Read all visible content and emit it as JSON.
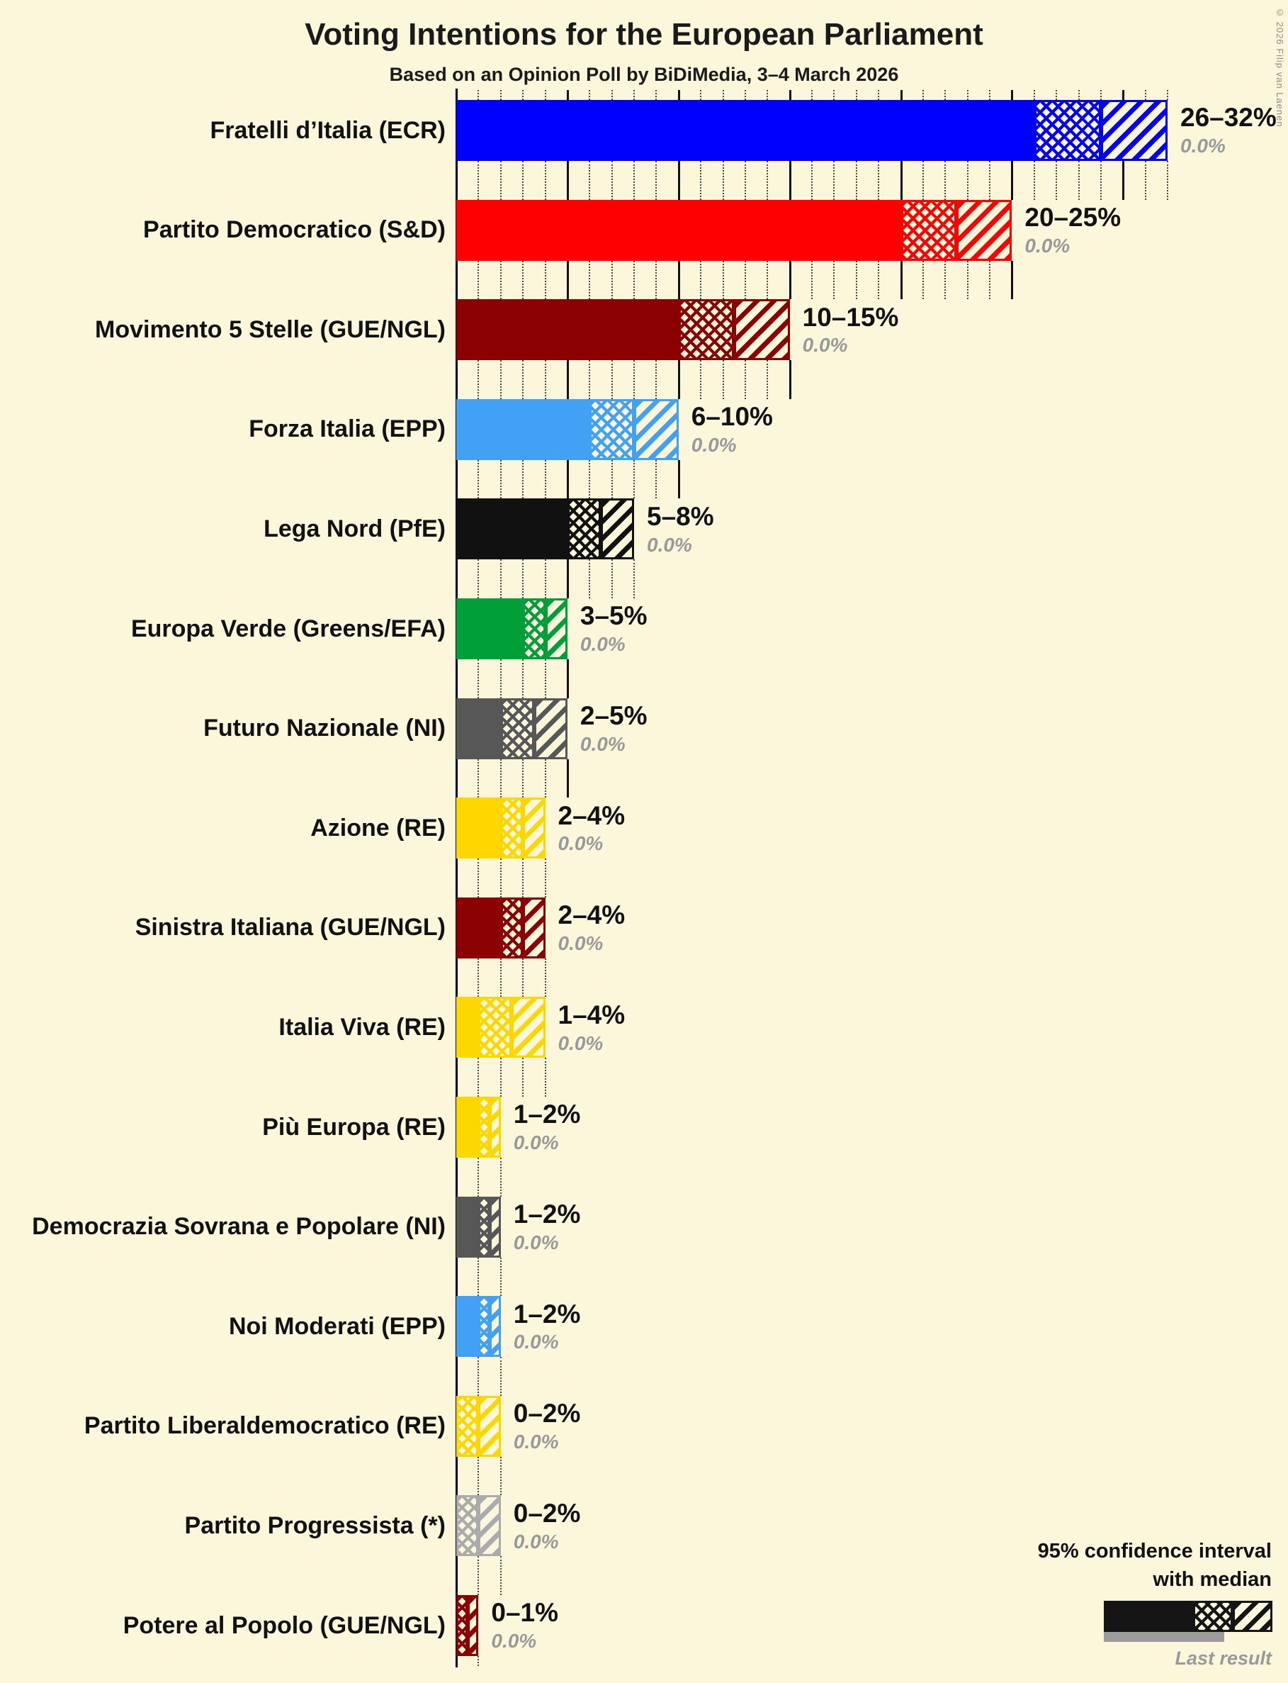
{
  "copyright": "© 2026 Filip van Laenen",
  "legend": {
    "line1": "95% confidence interval",
    "line2": "with median",
    "last_result_label": "Last result"
  },
  "colors": {
    "background": "#FCF7DB",
    "grid_minor": "#444444",
    "grid_major": "#111111",
    "text": "#111111",
    "muted_text": "#999999",
    "legend_sample": "#151515",
    "last_result_bar": "#9C9C9C"
  },
  "chart_data": {
    "type": "bar",
    "orientation": "horizontal",
    "title": "Voting Intentions for the European Parliament",
    "subtitle": "Based on an Opinion Poll by BiDiMedia, 3–4 March 2026",
    "unit": "%",
    "x_axis": {
      "min": 0,
      "max": 33,
      "minor_step": 1,
      "major_step": 5,
      "grid": "dotted-minor-solid-major"
    },
    "note": "Each bar shows the 95% confidence interval: solid fill up to lower bound, crosshatch up to the median, diagonal hatch up to upper bound.",
    "parties": [
      {
        "label": "Fratelli d’Italia (ECR)",
        "color": "#0000FF",
        "low": 26,
        "median": 29,
        "high": 32,
        "range_label": "26–32%",
        "last_result": "0.0%"
      },
      {
        "label": "Partito Democratico (S&D)",
        "color": "#FF0000",
        "low": 20,
        "median": 22.5,
        "high": 25,
        "range_label": "20–25%",
        "last_result": "0.0%"
      },
      {
        "label": "Movimento 5 Stelle (GUE/NGL)",
        "color": "#8B0000",
        "low": 10,
        "median": 12.5,
        "high": 15,
        "range_label": "10–15%",
        "last_result": "0.0%"
      },
      {
        "label": "Forza Italia (EPP)",
        "color": "#42A1F5",
        "low": 6,
        "median": 8,
        "high": 10,
        "range_label": "6–10%",
        "last_result": "0.0%"
      },
      {
        "label": "Lega Nord (PfE)",
        "color": "#111111",
        "low": 5,
        "median": 6.5,
        "high": 8,
        "range_label": "5–8%",
        "last_result": "0.0%"
      },
      {
        "label": "Europa Verde (Greens/EFA)",
        "color": "#009F3A",
        "low": 3,
        "median": 4,
        "high": 5,
        "range_label": "3–5%",
        "last_result": "0.0%"
      },
      {
        "label": "Futuro Nazionale (NI)",
        "color": "#575757",
        "low": 2,
        "median": 3.5,
        "high": 5,
        "range_label": "2–5%",
        "last_result": "0.0%"
      },
      {
        "label": "Azione (RE)",
        "color": "#FFD700",
        "low": 2,
        "median": 3,
        "high": 4,
        "range_label": "2–4%",
        "last_result": "0.0%"
      },
      {
        "label": "Sinistra Italiana (GUE/NGL)",
        "color": "#8B0000",
        "low": 2,
        "median": 3,
        "high": 4,
        "range_label": "2–4%",
        "last_result": "0.0%"
      },
      {
        "label": "Italia Viva (RE)",
        "color": "#FFD700",
        "low": 1,
        "median": 2.5,
        "high": 4,
        "range_label": "1–4%",
        "last_result": "0.0%"
      },
      {
        "label": "Più Europa (RE)",
        "color": "#FFD700",
        "low": 1,
        "median": 1.5,
        "high": 2,
        "range_label": "1–2%",
        "last_result": "0.0%"
      },
      {
        "label": "Democrazia Sovrana e Popolare (NI)",
        "color": "#575757",
        "low": 1,
        "median": 1.5,
        "high": 2,
        "range_label": "1–2%",
        "last_result": "0.0%"
      },
      {
        "label": "Noi Moderati (EPP)",
        "color": "#42A1F5",
        "low": 1,
        "median": 1.5,
        "high": 2,
        "range_label": "1–2%",
        "last_result": "0.0%"
      },
      {
        "label": "Partito Liberaldemocratico (RE)",
        "color": "#FFD700",
        "low": 0,
        "median": 1,
        "high": 2,
        "range_label": "0–2%",
        "last_result": "0.0%"
      },
      {
        "label": "Partito Progressista (*)",
        "color": "#ABABAB",
        "low": 0,
        "median": 1,
        "high": 2,
        "range_label": "0–2%",
        "last_result": "0.0%"
      },
      {
        "label": "Potere al Popolo (GUE/NGL)",
        "color": "#8B0000",
        "low": 0,
        "median": 0.5,
        "high": 1,
        "range_label": "0–1%",
        "last_result": "0.0%"
      }
    ]
  }
}
